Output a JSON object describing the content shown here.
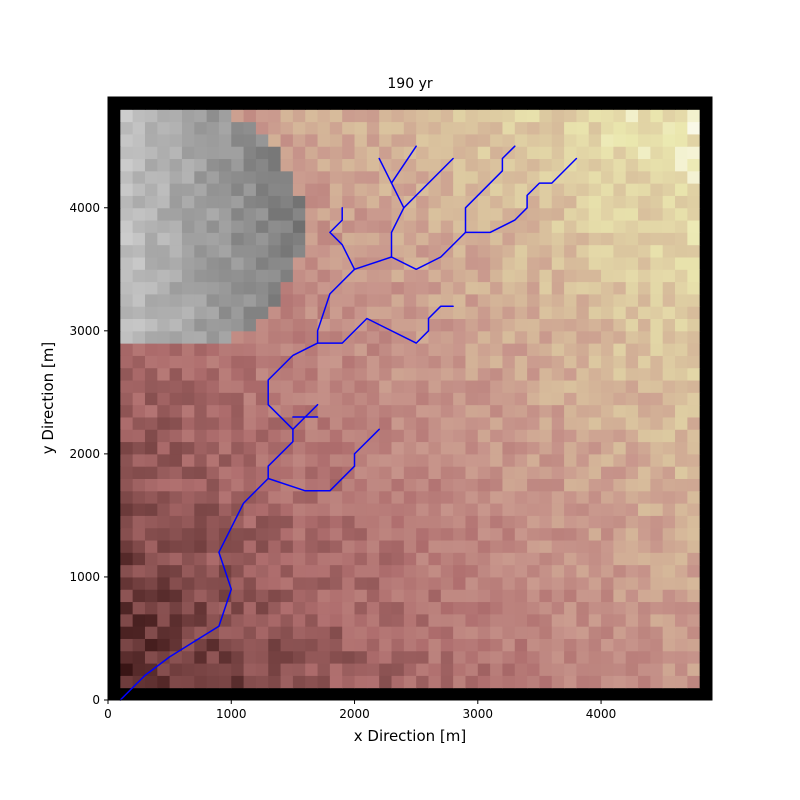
{
  "chart_data": {
    "type": "heatmap",
    "title": "190 yr",
    "xlabel": "x Direction [m]",
    "ylabel": "y Direction [m]",
    "xlim": [
      0,
      4900
    ],
    "ylim": [
      0,
      4900
    ],
    "xticks": [
      0,
      1000,
      2000,
      3000,
      4000
    ],
    "yticks": [
      0,
      1000,
      2000,
      3000,
      4000
    ],
    "grid_cells": 49,
    "cell_size_m": 100,
    "boundary": "closed (black frame)",
    "colormap": "pink",
    "lake_colormap": "gray",
    "channel_color": "#0000ff",
    "elevation_model": "elevation rises from southwest (low, dark) to northeast (high, pale); a depression (lake, gray) occupies the northwest corner",
    "channels": [
      {
        "name": "trunk",
        "points": [
          [
            100,
            0
          ],
          [
            300,
            200
          ],
          [
            500,
            350
          ],
          [
            900,
            600
          ],
          [
            1000,
            900
          ],
          [
            900,
            1200
          ],
          [
            1100,
            1600
          ],
          [
            1300,
            1800
          ],
          [
            1300,
            1900
          ],
          [
            1500,
            2100
          ],
          [
            1500,
            2200
          ],
          [
            1300,
            2400
          ],
          [
            1300,
            2600
          ],
          [
            1500,
            2800
          ],
          [
            1700,
            2900
          ],
          [
            1700,
            3000
          ],
          [
            1800,
            3300
          ],
          [
            2000,
            3500
          ],
          [
            2300,
            3600
          ],
          [
            2300,
            3800
          ],
          [
            2400,
            4000
          ],
          [
            2300,
            4200
          ],
          [
            2200,
            4400
          ]
        ]
      },
      {
        "name": "trib-a",
        "points": [
          [
            1300,
            1800
          ],
          [
            1600,
            1700
          ],
          [
            1800,
            1700
          ],
          [
            2000,
            1900
          ],
          [
            2000,
            2000
          ],
          [
            2200,
            2200
          ]
        ]
      },
      {
        "name": "trib-b",
        "points": [
          [
            1500,
            2200
          ],
          [
            1600,
            2300
          ],
          [
            1700,
            2400
          ]
        ]
      },
      {
        "name": "trib-b2",
        "points": [
          [
            1500,
            2300
          ],
          [
            1700,
            2300
          ]
        ]
      },
      {
        "name": "trib-c",
        "points": [
          [
            1700,
            2900
          ],
          [
            1900,
            2900
          ],
          [
            2100,
            3100
          ],
          [
            2500,
            2900
          ],
          [
            2600,
            3000
          ],
          [
            2600,
            3100
          ],
          [
            2700,
            3200
          ],
          [
            2800,
            3200
          ]
        ]
      },
      {
        "name": "trib-d",
        "points": [
          [
            2000,
            3500
          ],
          [
            1900,
            3700
          ],
          [
            1800,
            3800
          ],
          [
            1900,
            3900
          ],
          [
            1900,
            4000
          ]
        ]
      },
      {
        "name": "trib-e",
        "points": [
          [
            2300,
            3600
          ],
          [
            2500,
            3500
          ],
          [
            2700,
            3600
          ],
          [
            2900,
            3800
          ],
          [
            3100,
            3800
          ],
          [
            3300,
            3900
          ],
          [
            3400,
            4000
          ],
          [
            3400,
            4100
          ],
          [
            3500,
            4200
          ],
          [
            3600,
            4200
          ],
          [
            3800,
            4400
          ]
        ]
      },
      {
        "name": "trib-f",
        "points": [
          [
            2900,
            3800
          ],
          [
            2900,
            4000
          ],
          [
            3200,
            4300
          ],
          [
            3200,
            4400
          ],
          [
            3300,
            4500
          ]
        ]
      },
      {
        "name": "trib-g",
        "points": [
          [
            2400,
            4000
          ],
          [
            2800,
            4400
          ]
        ]
      },
      {
        "name": "trib-h",
        "points": [
          [
            2300,
            4200
          ],
          [
            2500,
            4500
          ]
        ]
      }
    ]
  }
}
